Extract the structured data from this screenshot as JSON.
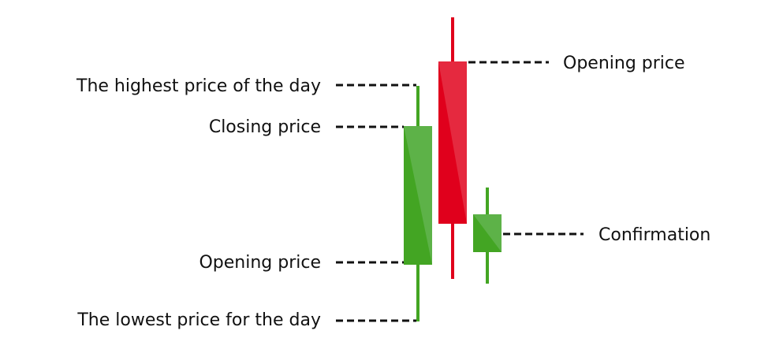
{
  "labels": {
    "highest": "The highest price of the day",
    "closing": "Closing price",
    "opening_left": "Opening price",
    "lowest": "The lowest price for the day",
    "opening_right": "Opening price",
    "confirmation": "Confirmation"
  },
  "colors": {
    "bullish": "#43a523",
    "bullish_light": "#5db248",
    "bearish": "#e0001c",
    "bearish_light": "#e5293f",
    "leader": "#111111"
  },
  "candles": [
    {
      "name": "bullish-candle",
      "direction": "up"
    },
    {
      "name": "bearish-candle",
      "direction": "down"
    },
    {
      "name": "confirmation-candle",
      "direction": "up"
    }
  ]
}
